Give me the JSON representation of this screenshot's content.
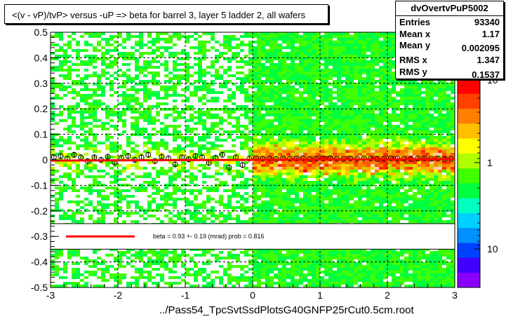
{
  "title": "<(v - vP)/tvP> versus  -uP => beta for barrel 3, layer 5 ladder 2, all wafers",
  "stats": {
    "name": "dvOvertvPuP5002",
    "rows": [
      {
        "label": "Entries",
        "value": "93340"
      },
      {
        "label": "Mean x",
        "value": "1.17"
      },
      {
        "label": "Mean y",
        "value": "0.002095"
      },
      {
        "label": "RMS x",
        "value": "1.347"
      },
      {
        "label": "RMS y",
        "value": "0.1537"
      }
    ]
  },
  "x_axis_title": "../Pass54_TpcSvtSsdPlotsG40GNFP25rCut0.5cm.root",
  "colors": {
    "fit_line": "#ff0000",
    "profile_marker": "#000000",
    "legend_bg": "#ffffff",
    "palette": [
      "#8a00ff",
      "#4000ff",
      "#0040ff",
      "#0090ff",
      "#00d0ff",
      "#00ffc0",
      "#00ff40",
      "#40ff00",
      "#b0ff00",
      "#ffff00",
      "#ffc000",
      "#ff8000",
      "#ff4000",
      "#ff0000"
    ]
  },
  "chart_data": {
    "type": "heatmap",
    "xlim": [
      -3,
      3
    ],
    "ylim": [
      -0.5,
      0.5
    ],
    "x_ticks": [
      "-3",
      "-2",
      "-1",
      "0",
      "1",
      "2",
      "3"
    ],
    "y_ticks": [
      "-0.5",
      "-0.4",
      "-0.3",
      "-0.2",
      "-0.1",
      "0",
      "0.1",
      "0.2",
      "0.3",
      "0.4",
      "0.5"
    ],
    "grid": true,
    "log_z": true,
    "z_labels": [
      "10",
      "1",
      "10"
    ],
    "fit": {
      "type": "line",
      "slope_mrad": 0.93,
      "slope_err": 0.19,
      "prob": 0.816,
      "x_range": [
        -3,
        3
      ],
      "y_at_x_min": -0.0028
    },
    "legend_text": "beta =    0.93 +-  0.19 (mrad) prob = 0.816",
    "legend_y_range": [
      -0.35,
      -0.25
    ],
    "profile": {
      "x": [
        -2.95,
        -2.85,
        -2.75,
        -2.65,
        -2.55,
        -2.45,
        -2.35,
        -2.25,
        -2.15,
        -2.05,
        -1.95,
        -1.85,
        -1.75,
        -1.65,
        -1.55,
        -1.45,
        -1.35,
        -1.25,
        -1.15,
        -1.05,
        -0.95,
        -0.85,
        -0.75,
        -0.65,
        -0.55,
        -0.45,
        -0.35,
        -0.25,
        -0.15,
        -0.05,
        0.05,
        0.15,
        0.25,
        0.35,
        0.45,
        0.55,
        0.65,
        0.75,
        0.85,
        0.95,
        1.05,
        1.15,
        1.25,
        1.35,
        1.45,
        1.55,
        1.65,
        1.75,
        1.85,
        1.95,
        2.05,
        2.15,
        2.25,
        2.35,
        2.45,
        2.55,
        2.65,
        2.75,
        2.85,
        2.95
      ],
      "y": [
        0.01,
        0.015,
        0.005,
        0.02,
        0.01,
        -0.005,
        0.01,
        0.0,
        0.012,
        -0.01,
        0.008,
        0.015,
        0.0,
        0.01,
        0.02,
        -0.005,
        0.012,
        0.006,
        -0.018,
        0.01,
        0.002,
        0.015,
        0.01,
        -0.012,
        0.008,
        0.02,
        -0.03,
        0.01,
        -0.02,
        0.005,
        0.006,
        0.004,
        0.005,
        0.003,
        0.006,
        0.004,
        0.005,
        0.006,
        0.003,
        0.004,
        0.005,
        0.006,
        0.004,
        0.003,
        0.005,
        0.004,
        0.006,
        0.005,
        0.003,
        0.004,
        0.006,
        0.005,
        0.004,
        0.003,
        0.005,
        0.006,
        0.004,
        0.005,
        0.003,
        0.004
      ],
      "yerr": [
        0.012,
        0.012,
        0.012,
        0.012,
        0.012,
        0.012,
        0.012,
        0.012,
        0.012,
        0.012,
        0.012,
        0.012,
        0.012,
        0.012,
        0.012,
        0.012,
        0.012,
        0.012,
        0.012,
        0.012,
        0.012,
        0.012,
        0.012,
        0.012,
        0.012,
        0.012,
        0.012,
        0.012,
        0.012,
        0.012,
        0.004,
        0.004,
        0.004,
        0.004,
        0.004,
        0.004,
        0.004,
        0.004,
        0.004,
        0.004,
        0.004,
        0.004,
        0.004,
        0.004,
        0.004,
        0.004,
        0.004,
        0.004,
        0.004,
        0.004,
        0.004,
        0.004,
        0.004,
        0.004,
        0.004,
        0.004,
        0.004,
        0.004,
        0.004,
        0.004
      ]
    }
  }
}
